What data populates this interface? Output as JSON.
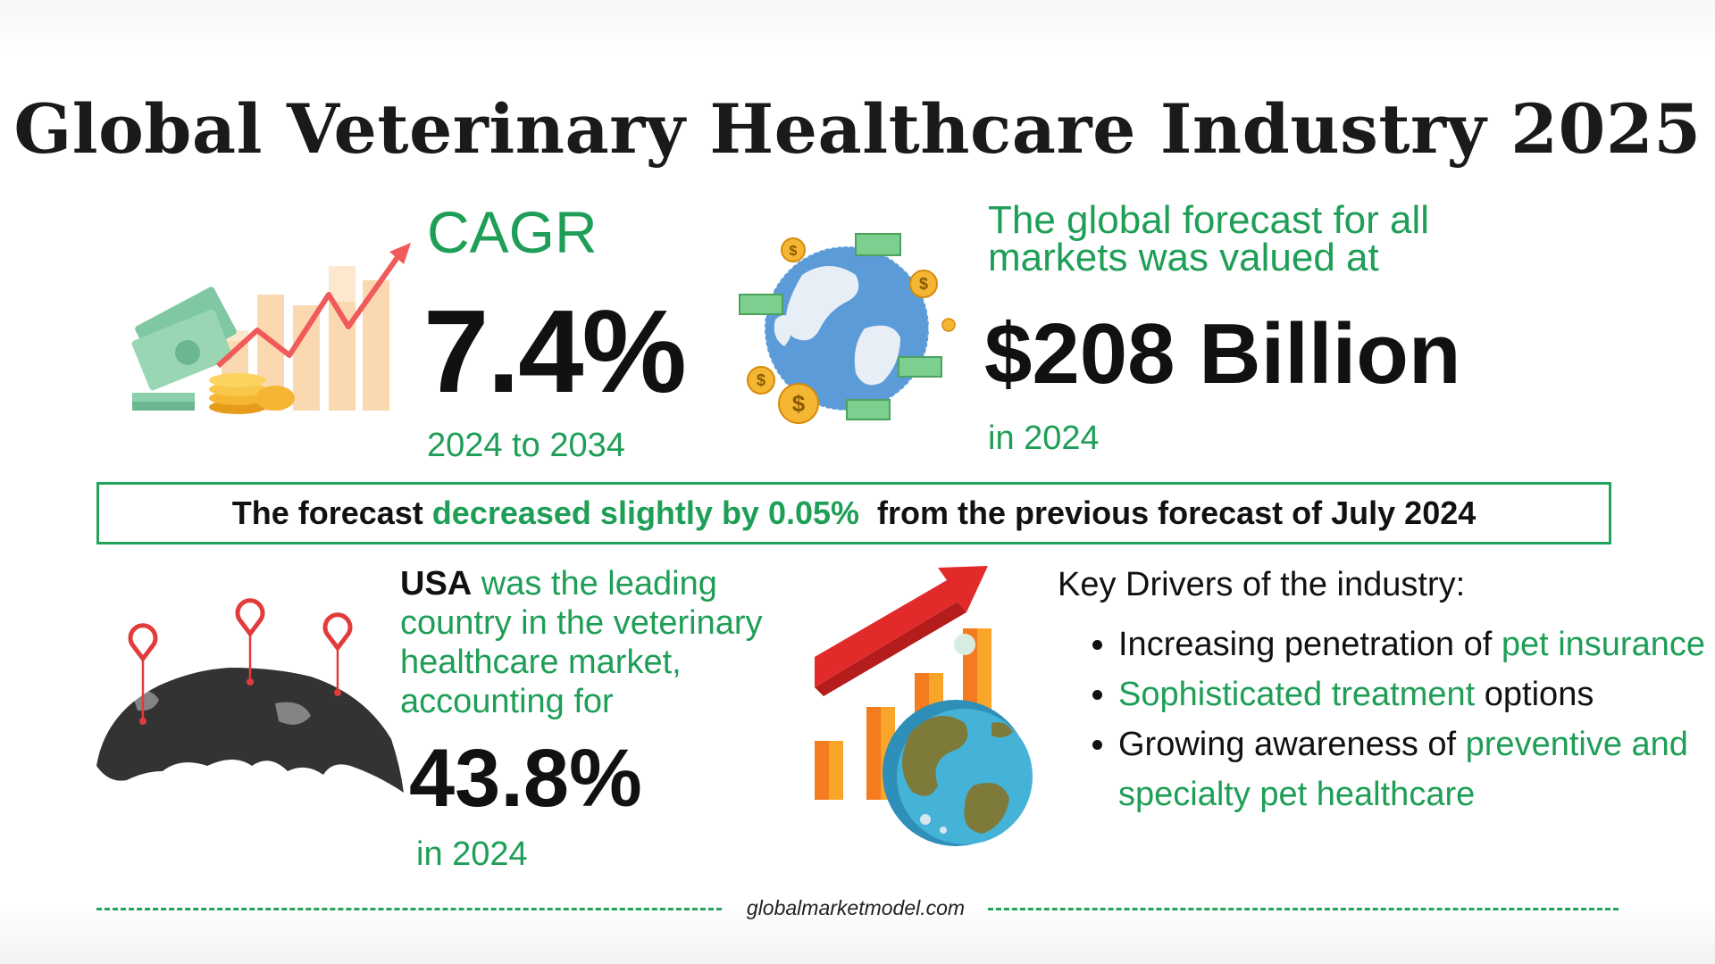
{
  "title": "Global Veterinary Healthcare Industry 2025",
  "cagr": {
    "label": "CAGR",
    "value": "7.4%",
    "period": "2024 to 2034"
  },
  "forecast": {
    "line1": "The global forecast for all",
    "line2": "markets was valued at",
    "value": "$208 Billion",
    "year": "in 2024"
  },
  "banner": {
    "part1": "The forecast ",
    "highlight": "decreased slightly by 0.05%",
    "part2": "  from the previous forecast of July 2024"
  },
  "usa": {
    "country": "USA",
    "text": " was the leading country in the veterinary healthcare market, accounting for",
    "value": "43.8%",
    "year": "in 2024"
  },
  "drivers": {
    "title": "Key Drivers of the industry:",
    "items": [
      {
        "plain1": "Increasing penetration of ",
        "green": "pet insurance",
        "plain2": ""
      },
      {
        "plain1": "",
        "green": "Sophisticated treatment",
        "plain2": " options"
      },
      {
        "plain1": "Growing awareness of ",
        "green": "preventive and specialty pet healthcare",
        "plain2": ""
      }
    ]
  },
  "footer": {
    "site": "globalmarketmodel.com"
  },
  "icons": {
    "growth": "money-growth-chart-icon",
    "globe_money": "globe-money-icon",
    "world_pins": "world-map-pins-icon",
    "globe_chart": "globe-growth-chart-icon",
    "dollar_symbol": "$"
  },
  "colors": {
    "accent_green": "#1e9e56",
    "text_dark": "#111111",
    "arrow_red": "#e23b3b"
  }
}
